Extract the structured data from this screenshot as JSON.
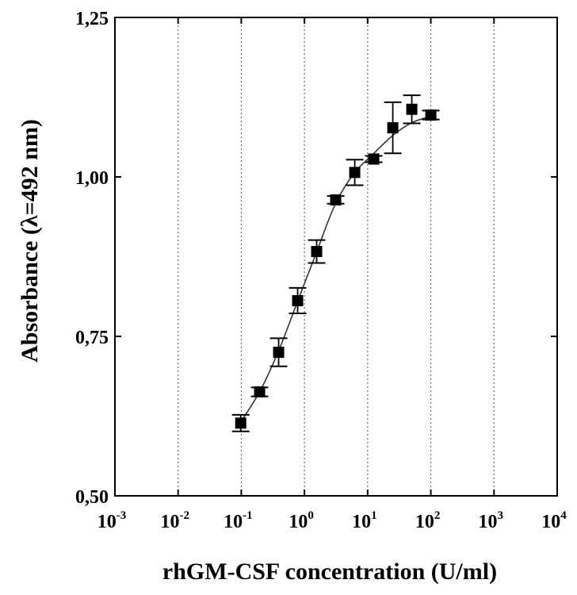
{
  "chart_data": {
    "type": "scatter",
    "title": "",
    "xlabel": "rhGM-CSF concentration (U/ml)",
    "ylabel": "Absorbance (λ=492 nm)",
    "x_scale": "log",
    "xlim": [
      0.001,
      10000
    ],
    "ylim": [
      0.5,
      1.25
    ],
    "x_ticks": [
      {
        "value": 0.001,
        "base": "10",
        "exp": "-3"
      },
      {
        "value": 0.01,
        "base": "10",
        "exp": "-2"
      },
      {
        "value": 0.1,
        "base": "10",
        "exp": "-1"
      },
      {
        "value": 1,
        "base": "10",
        "exp": "0"
      },
      {
        "value": 10,
        "base": "10",
        "exp": "1"
      },
      {
        "value": 100,
        "base": "10",
        "exp": "2"
      },
      {
        "value": 1000,
        "base": "10",
        "exp": "3"
      },
      {
        "value": 10000,
        "base": "10",
        "exp": "4"
      }
    ],
    "y_ticks": [
      {
        "value": 0.5,
        "label": "0,50"
      },
      {
        "value": 0.75,
        "label": "0,75"
      },
      {
        "value": 1.0,
        "label": "1,00"
      },
      {
        "value": 1.25,
        "label": "1,25"
      }
    ],
    "grid": "vertical-dotted",
    "legend": "none",
    "series": [
      {
        "x": [
          0.098,
          0.195,
          0.39,
          0.78,
          1.56,
          3.12,
          6.25,
          12.5,
          25,
          50,
          100
        ],
        "y": [
          0.614,
          0.663,
          0.725,
          0.806,
          0.883,
          0.964,
          1.007,
          1.028,
          1.077,
          1.106,
          1.097
        ],
        "error": [
          0.013,
          0.007,
          0.022,
          0.02,
          0.018,
          0.006,
          0.02,
          0.005,
          0.04,
          0.022,
          0.007
        ],
        "marker": "square",
        "color": "#000000"
      }
    ],
    "fit_curve": {
      "x": [
        0.09,
        0.2,
        0.4,
        0.8,
        1.5,
        3,
        6,
        12,
        25,
        50,
        100
      ],
      "y": [
        0.61,
        0.665,
        0.73,
        0.808,
        0.878,
        0.955,
        1.005,
        1.035,
        1.065,
        1.085,
        1.095
      ],
      "color": "#333333"
    }
  }
}
